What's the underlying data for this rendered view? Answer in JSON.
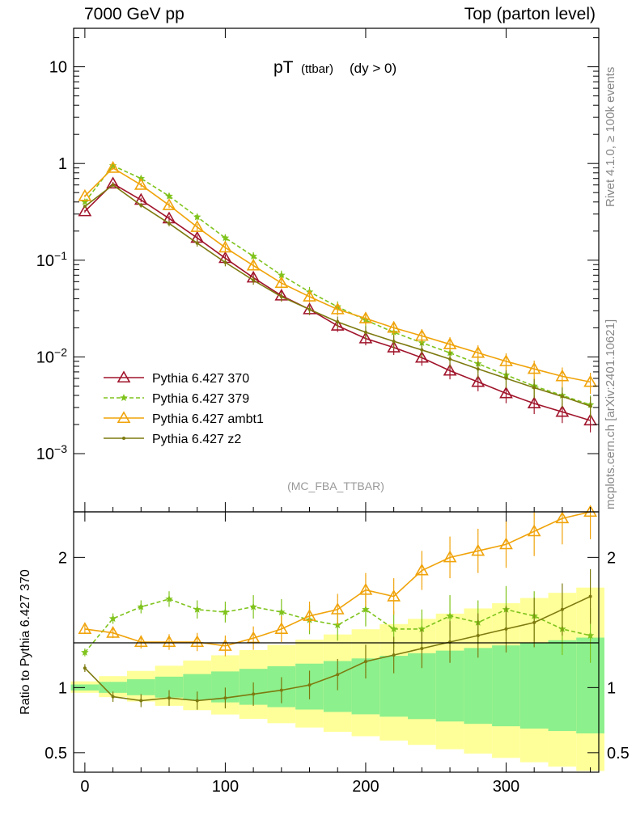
{
  "header": {
    "left": "7000 GeV pp",
    "right": "Top (parton level)"
  },
  "side": {
    "rivet": "Rivet 4.1.0, ≥ 100k events",
    "mcplots": "mcplots.cern.ch [arXiv:2401.10621]"
  },
  "main_title": {
    "main": "pT",
    "sub": "(ttbar)",
    "cut": "(dy > 0)"
  },
  "watermark": "(MC_FBA_TTBAR)",
  "ratio_ylabel": "Ratio to Pythia 6.427 370",
  "legend": [
    {
      "label": "Pythia 6.427 370",
      "color": "#a0142b",
      "marker": "triangle-open",
      "dash": false
    },
    {
      "label": "Pythia 6.427 379",
      "color": "#7fc31c",
      "marker": "star",
      "dash": true
    },
    {
      "label": "Pythia 6.427 ambt1",
      "color": "#f0a30a",
      "marker": "triangle-open",
      "dash": false
    },
    {
      "label": "Pythia 6.427 z2",
      "color": "#7d7a0f",
      "marker": "dot",
      "dash": false
    }
  ],
  "chart_data": {
    "type": "line",
    "title": "pT (ttbar) (dy > 0)",
    "xlabel": "",
    "ylabel": "",
    "xlim": [
      -8,
      366
    ],
    "ylim": [
      0.00025,
      25
    ],
    "yscale": "log",
    "ratio_ylim": [
      0.35,
      2.35
    ],
    "x_ticks": [
      0,
      100,
      200,
      300
    ],
    "y_ticks": [
      "10^-3",
      "10^-2",
      "10^-1",
      "1",
      "10"
    ],
    "ratio_ticks": [
      "0.5",
      "1",
      "2"
    ],
    "band_colors": {
      "inner": "#8cf08c",
      "outer": "#ffff99"
    },
    "x": [
      0,
      20,
      40,
      60,
      80,
      100,
      120,
      140,
      160,
      180,
      200,
      220,
      240,
      260,
      280,
      300,
      320,
      340,
      360
    ],
    "series": [
      {
        "name": "Pythia 6.427 370",
        "values": [
          0.32,
          0.62,
          0.42,
          0.27,
          0.17,
          0.105,
          0.066,
          0.043,
          0.031,
          0.021,
          0.0155,
          0.0125,
          0.0098,
          0.0072,
          0.0055,
          0.0042,
          0.0033,
          0.0027,
          0.0022
        ]
      },
      {
        "name": "Pythia 6.427 379",
        "values": [
          0.4,
          0.95,
          0.7,
          0.46,
          0.28,
          0.17,
          0.11,
          0.07,
          0.047,
          0.033,
          0.024,
          0.018,
          0.014,
          0.011,
          0.0085,
          0.0065,
          0.005,
          0.004,
          0.0032
        ]
      },
      {
        "name": "Pythia 6.427 ambt1",
        "values": [
          0.46,
          0.9,
          0.6,
          0.37,
          0.22,
          0.135,
          0.088,
          0.058,
          0.042,
          0.031,
          0.025,
          0.02,
          0.0165,
          0.0135,
          0.011,
          0.009,
          0.0075,
          0.0063,
          0.0055
        ]
      },
      {
        "name": "Pythia 6.427 z2",
        "values": [
          0.36,
          0.6,
          0.37,
          0.24,
          0.15,
          0.095,
          0.062,
          0.042,
          0.031,
          0.023,
          0.018,
          0.0145,
          0.0118,
          0.0095,
          0.0075,
          0.006,
          0.0048,
          0.0039,
          0.0031
        ]
      }
    ],
    "ratio_series": [
      {
        "name": "Pythia 6.427 370",
        "values": [
          1,
          1,
          1,
          1,
          1,
          1,
          1,
          1,
          1,
          1,
          1,
          1,
          1,
          1,
          1,
          1,
          1,
          1,
          1
        ]
      },
      {
        "name": "Pythia 6.427 379",
        "values": [
          1.27,
          1.53,
          1.62,
          1.68,
          1.6,
          1.58,
          1.62,
          1.58,
          1.52,
          1.48,
          1.6,
          1.45,
          1.45,
          1.55,
          1.5,
          1.6,
          1.55,
          1.45,
          1.4
        ]
      },
      {
        "name": "Pythia 6.427 ambt1",
        "values": [
          1.45,
          1.42,
          1.35,
          1.35,
          1.35,
          1.32,
          1.38,
          1.45,
          1.55,
          1.6,
          1.75,
          1.7,
          1.9,
          2.0,
          2.05,
          2.1,
          2.2,
          2.3,
          2.35
        ]
      },
      {
        "name": "Pythia 6.427 z2",
        "values": [
          1.15,
          0.93,
          0.9,
          0.92,
          0.9,
          0.92,
          0.95,
          0.98,
          1.02,
          1.1,
          1.2,
          1.25,
          1.3,
          1.35,
          1.4,
          1.45,
          1.5,
          1.6,
          1.7
        ]
      }
    ]
  }
}
